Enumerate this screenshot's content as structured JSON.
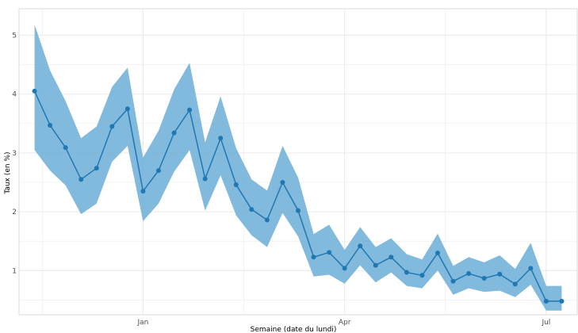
{
  "chart_data": {
    "type": "line",
    "title": "",
    "xlabel": "Semaine (date du lundi)",
    "ylabel": "Taux (en %)",
    "x_ticks": [
      {
        "label": "Jan",
        "date": "2024-01-01"
      },
      {
        "label": "Apr",
        "date": "2024-04-01"
      },
      {
        "label": "Jul",
        "date": "2024-07-01"
      }
    ],
    "y_ticks": [
      1,
      2,
      3,
      4,
      5
    ],
    "ylim": [
      0.25,
      5.45
    ],
    "xlim": [
      "2023-11-06",
      "2024-07-15"
    ],
    "grid": true,
    "colors": {
      "line": "#1f77b4",
      "band": "#6baed6",
      "grid": "#ebebeb",
      "panel_border": "#d9d9d9"
    },
    "series": [
      {
        "x": [
          "2023-11-13",
          "2023-11-20",
          "2023-11-27",
          "2023-12-04",
          "2023-12-11",
          "2023-12-18",
          "2023-12-25",
          "2024-01-01",
          "2024-01-08",
          "2024-01-15",
          "2024-01-22",
          "2024-01-29",
          "2024-02-05",
          "2024-02-12",
          "2024-02-19",
          "2024-02-26",
          "2024-03-04",
          "2024-03-11",
          "2024-03-18",
          "2024-03-25",
          "2024-04-01",
          "2024-04-08",
          "2024-04-15",
          "2024-04-22",
          "2024-04-29",
          "2024-05-06",
          "2024-05-13",
          "2024-05-20",
          "2024-05-27",
          "2024-06-03",
          "2024-06-10",
          "2024-06-17",
          "2024-06-24",
          "2024-07-01",
          "2024-07-08"
        ],
        "values": [
          4.05,
          3.47,
          3.09,
          2.55,
          2.74,
          3.45,
          3.75,
          2.35,
          2.7,
          3.34,
          3.73,
          2.56,
          3.25,
          2.46,
          2.04,
          1.86,
          2.5,
          2.02,
          1.23,
          1.31,
          1.04,
          1.42,
          1.09,
          1.23,
          0.97,
          0.92,
          1.3,
          0.82,
          0.95,
          0.87,
          0.94,
          0.77,
          1.04,
          0.48,
          0.48
        ],
        "lower": [
          3.05,
          2.7,
          2.45,
          1.96,
          2.14,
          2.85,
          3.12,
          1.84,
          2.14,
          2.68,
          3.05,
          2.02,
          2.62,
          1.94,
          1.6,
          1.4,
          1.98,
          1.58,
          0.9,
          0.93,
          0.78,
          1.09,
          0.8,
          0.97,
          0.74,
          0.7,
          1.0,
          0.59,
          0.7,
          0.64,
          0.66,
          0.55,
          0.76,
          0.32,
          0.32
        ],
        "upper": [
          5.18,
          4.4,
          3.88,
          3.25,
          3.45,
          4.12,
          4.45,
          2.92,
          3.38,
          4.08,
          4.53,
          3.18,
          3.96,
          3.08,
          2.55,
          2.36,
          3.12,
          2.58,
          1.62,
          1.78,
          1.35,
          1.74,
          1.4,
          1.55,
          1.28,
          1.19,
          1.63,
          1.08,
          1.23,
          1.14,
          1.26,
          1.03,
          1.47,
          0.74,
          0.74
        ]
      }
    ]
  }
}
